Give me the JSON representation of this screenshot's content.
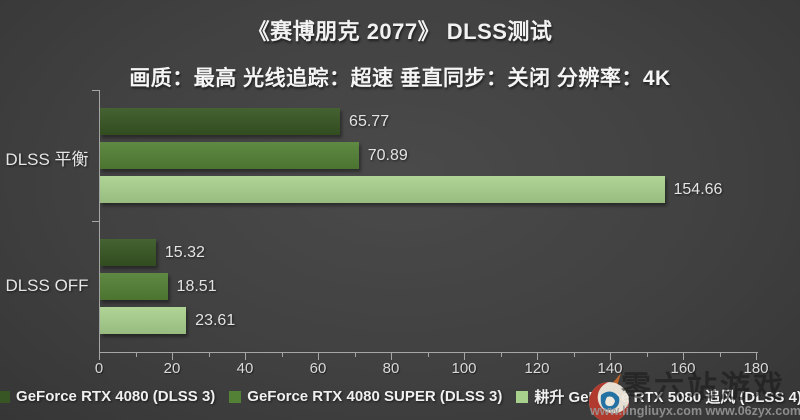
{
  "title": "《赛博朋克 2077》 DLSS测试",
  "subtitle": "画质：最高 光线追踪：超速 垂直同步：关闭 分辨率：4K",
  "chart_data": {
    "type": "bar",
    "orientation": "horizontal",
    "title": "《赛博朋克 2077》 DLSS测试",
    "subtitle": "画质：最高 光线追踪：超速 垂直同步：关闭 分辨率：4K",
    "categories": [
      "DLSS 平衡",
      "DLSS  OFF"
    ],
    "series": [
      {
        "name": "GeForce RTX 4080 (DLSS 3)",
        "color": "#375623",
        "values": [
          65.77,
          15.32
        ]
      },
      {
        "name": "GeForce RTX 4080 SUPER (DLSS 3)",
        "color": "#538135",
        "values": [
          70.89,
          18.51
        ]
      },
      {
        "name": "耕升 GeForce RTX 5080 追风 (DLSS  4)",
        "color": "#A9D18E",
        "values": [
          154.66,
          23.61
        ]
      }
    ],
    "xlim": [
      0,
      180
    ],
    "x_major_tick": 20,
    "x_minor_tick": 10,
    "grid": false,
    "legend_position": "bottom"
  },
  "colors": {
    "background": "#414141",
    "axis": "#a6a6a6",
    "tick_label": "#d9d9d9",
    "data_label": "#e3e3e3"
  },
  "watermark": {
    "site_name": "零六站游戏",
    "urls": "www.lingliuyx.com   www.06zyx.com"
  }
}
